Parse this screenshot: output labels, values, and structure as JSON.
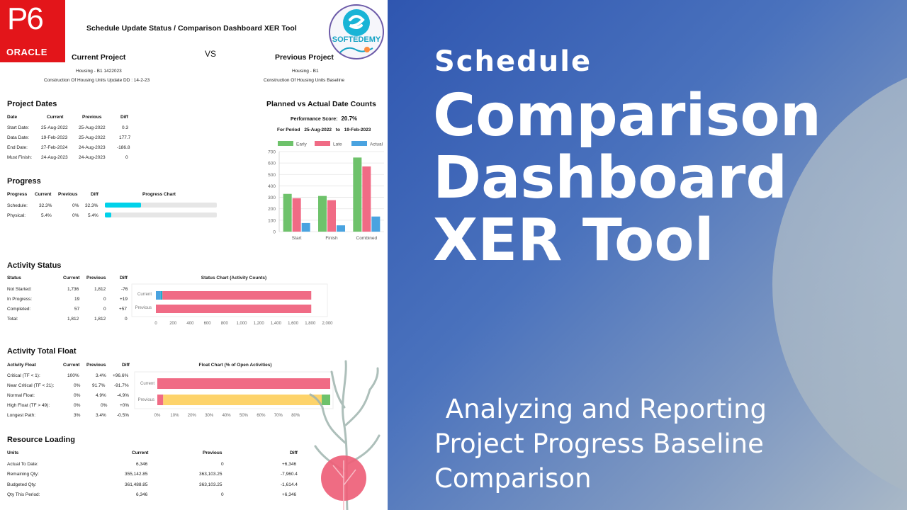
{
  "header": {
    "title": "Schedule Update Status / Comparison Dashboard XER Tool",
    "logo_p6": "P6",
    "logo_oracle": "ORACLE",
    "logo_softedemy": "SOFTEDEMY",
    "vs": "VS",
    "current_label": "Current Project",
    "current_id": "Housing - B1 1422023",
    "current_name": "Construction Of Housing Units Update DD : 14-2-23",
    "previous_label": "Previous Project",
    "previous_id": "Housing - B1",
    "previous_name": "Construction Of Housing Units Baseline"
  },
  "project_dates": {
    "title": "Project Dates",
    "headers": [
      "Date",
      "Current",
      "Previous",
      "Diff"
    ],
    "rows": [
      [
        "Start Date:",
        "25-Aug-2022",
        "25-Aug-2022",
        "0.3"
      ],
      [
        "Data Date:",
        "19-Feb-2023",
        "25-Aug-2022",
        "177.7"
      ],
      [
        "End Date:",
        "27-Feb-2024",
        "24-Aug-2023",
        "-186.8"
      ],
      [
        "Must Finish:",
        "24-Aug-2023",
        "24-Aug-2023",
        "0"
      ]
    ]
  },
  "progress": {
    "title": "Progress",
    "headers": [
      "Progress",
      "Current",
      "Previous",
      "Diff",
      "Progress Chart"
    ],
    "rows": [
      {
        "label": "Schedule:",
        "current": "32.3%",
        "previous": "0%",
        "diff": "32.3%",
        "fill": 0.323
      },
      {
        "label": "Physical:",
        "current": "5.4%",
        "previous": "0%",
        "diff": "5.4%",
        "fill": 0.054
      }
    ]
  },
  "planned_actual": {
    "title": "Planned vs Actual Date Counts",
    "score_label": "Performance Score:",
    "score": "20.7%",
    "period_label": "For Period",
    "period_from": "25-Aug-2022",
    "period_to_word": "to",
    "period_to": "19-Feb-2023"
  },
  "activity_status": {
    "title": "Activity Status",
    "headers": [
      "Status",
      "Current",
      "Previous",
      "Diff"
    ],
    "rows": [
      [
        "Not Started:",
        "1,736",
        "1,812",
        "-76"
      ],
      [
        "In Progress:",
        "19",
        "0",
        "+19"
      ],
      [
        "Completed:",
        "57",
        "0",
        "+57"
      ],
      [
        "Total:",
        "1,812",
        "1,812",
        "0"
      ]
    ]
  },
  "activity_float": {
    "title": "Activity Total Float",
    "headers": [
      "Activity Float",
      "Current",
      "Previous",
      "Diff"
    ],
    "rows": [
      [
        "Critical (TF < 1):",
        "100%",
        "3.4%",
        "+96.6%"
      ],
      [
        "Near Critical (TF < 21):",
        "0%",
        "91.7%",
        "-91.7%"
      ],
      [
        "Normal Float:",
        "0%",
        "4.9%",
        "-4.9%"
      ],
      [
        "High Float (TF > 49):",
        "0%",
        "0%",
        "+0%"
      ],
      [
        "Longest Path:",
        "3%",
        "3.4%",
        "-0.5%"
      ]
    ]
  },
  "resource_loading": {
    "title": "Resource Loading",
    "headers": [
      "Units",
      "Current",
      "Previous",
      "Diff"
    ],
    "rows": [
      [
        "Actual To Date:",
        "6,346",
        "0",
        "+6,346"
      ],
      [
        "Remaining Qty:",
        "355,142.85",
        "363,103.25",
        "-7,960.4"
      ],
      [
        "Budgeted Qty:",
        "361,488.85",
        "363,103.25",
        "-1,614.4"
      ],
      [
        "Qty This Period:",
        "6,346",
        "0",
        "+6,346"
      ]
    ]
  },
  "banner": {
    "line1": "Schedule",
    "line2": "Comparison",
    "line3": "Dashboard",
    "line4": "XER Tool",
    "sub1": " Analyzing and Reporting",
    "sub2": "Project Progress Baseline",
    "sub3": "Comparison"
  },
  "colors": {
    "early": "#6ec26b",
    "late": "#f06b85",
    "actual": "#4aa3e0",
    "progress": "#00d2ea",
    "near_critical": "#fdd36b",
    "banner_blue": "#2f56b0"
  },
  "chart_data": [
    {
      "type": "bar",
      "title": "",
      "categories": [
        "Start",
        "Finish",
        "Combined"
      ],
      "series": [
        {
          "name": "Early",
          "values": [
            330,
            312,
            648
          ]
        },
        {
          "name": "Late",
          "values": [
            292,
            275,
            570
          ]
        },
        {
          "name": "Actual",
          "values": [
            75,
            55,
            132
          ]
        }
      ],
      "ylim": [
        0,
        700
      ],
      "yticks": [
        0,
        100,
        200,
        300,
        400,
        500,
        600,
        700
      ],
      "legend": "top",
      "grid": true
    },
    {
      "type": "bar",
      "orientation": "horizontal",
      "stacked": true,
      "title": "Status Chart (Activity Counts)",
      "categories": [
        "Current",
        "Previous"
      ],
      "series": [
        {
          "name": "Completed",
          "values": [
            57,
            0
          ]
        },
        {
          "name": "In Progress",
          "values": [
            19,
            0
          ]
        },
        {
          "name": "Not Started",
          "values": [
            1736,
            1812
          ]
        }
      ],
      "xlim": [
        0,
        2000
      ],
      "xticks": [
        "0",
        "200",
        "400",
        "600",
        "800",
        "1,000",
        "1,200",
        "1,400",
        "1,600",
        "1,800",
        "2,000"
      ]
    },
    {
      "type": "bar",
      "orientation": "horizontal",
      "stacked": true,
      "title": "Float Chart (% of Open Activities)",
      "categories": [
        "Current",
        "Previous"
      ],
      "series": [
        {
          "name": "Critical",
          "values": [
            100,
            3.4
          ]
        },
        {
          "name": "Near Critical",
          "values": [
            0,
            91.7
          ]
        },
        {
          "name": "Normal Float",
          "values": [
            0,
            4.9
          ]
        }
      ],
      "xlim": [
        0,
        100
      ],
      "xticks": [
        "0%",
        "10%",
        "20%",
        "30%",
        "40%",
        "50%",
        "60%",
        "70%",
        "80%"
      ]
    }
  ]
}
